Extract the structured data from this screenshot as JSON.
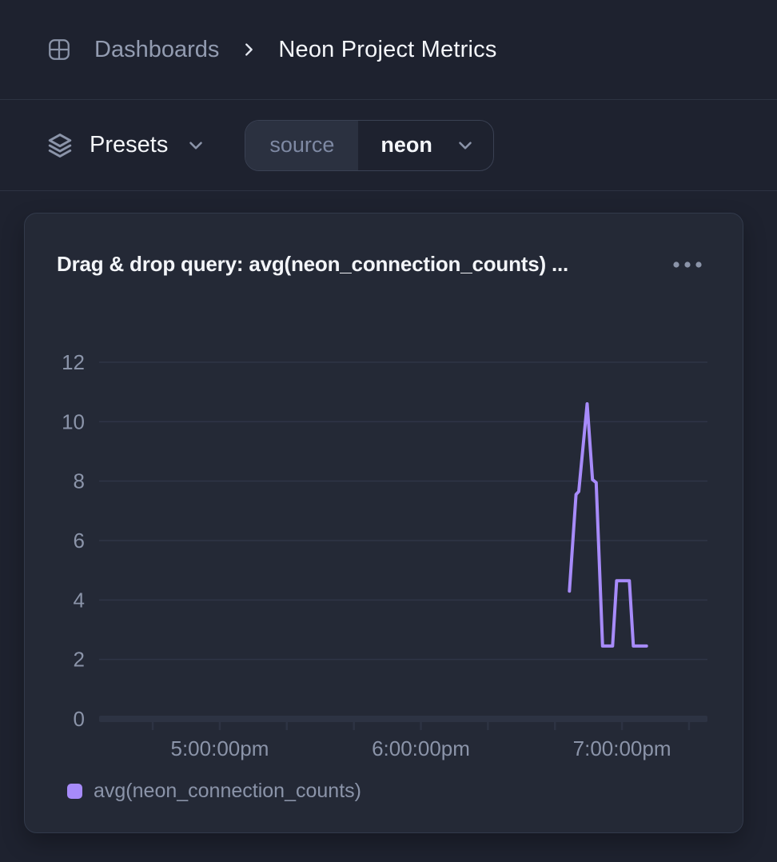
{
  "header": {
    "breadcrumb_root": "Dashboards",
    "page_title": "Neon Project Metrics"
  },
  "toolbar": {
    "presets_label": "Presets",
    "filter": {
      "key": "source",
      "value": "neon"
    }
  },
  "panel": {
    "title": "Drag & drop query: avg(neon_connection_counts) ...",
    "menu_icon": "ellipsis-horizontal",
    "legend": [
      {
        "label": "avg(neon_connection_counts)",
        "color": "#a78bfa"
      }
    ]
  },
  "chart_data": {
    "type": "line",
    "title": "Drag & drop query: avg(neon_connection_counts) ...",
    "x_axis": {
      "kind": "time",
      "unit": "minutes after 4:00pm",
      "range": [
        24,
        205.5
      ],
      "tick_interval_minutes": 20,
      "labeled_ticks": [
        {
          "t": 60,
          "label": "5:00:00pm"
        },
        {
          "t": 120,
          "label": "6:00:00pm"
        },
        {
          "t": 180,
          "label": "7:00:00pm"
        }
      ]
    },
    "y_axis": {
      "range": [
        0,
        12
      ],
      "ticks": [
        0,
        2,
        4,
        6,
        8,
        10,
        12
      ]
    },
    "grid": "horizontal",
    "legend_position": "bottom-left",
    "series": [
      {
        "name": "avg(neon_connection_counts)",
        "color": "#a78bfa",
        "points": [
          [
            164.3,
            4.3
          ],
          [
            166.3,
            7.55
          ],
          [
            167.1,
            7.65
          ],
          [
            169.6,
            10.6
          ],
          [
            171.2,
            8.05
          ],
          [
            172.3,
            7.95
          ],
          [
            174.2,
            2.45
          ],
          [
            177.2,
            2.45
          ],
          [
            178.4,
            4.65
          ],
          [
            182.2,
            4.65
          ],
          [
            183.4,
            2.45
          ],
          [
            187.3,
            2.45
          ]
        ]
      }
    ]
  },
  "colors": {
    "background": "#1e222f",
    "card": "#242936",
    "border": "#323a4b",
    "divider": "#2d3342",
    "muted_text": "#8b94a9",
    "white_text": "#f4f6fa",
    "grid": "#2f3547",
    "axis": "#2d3343",
    "accent_purple": "#a78bfa",
    "pill_key_bg": "#2b3140",
    "pill_border": "#3a4153"
  }
}
